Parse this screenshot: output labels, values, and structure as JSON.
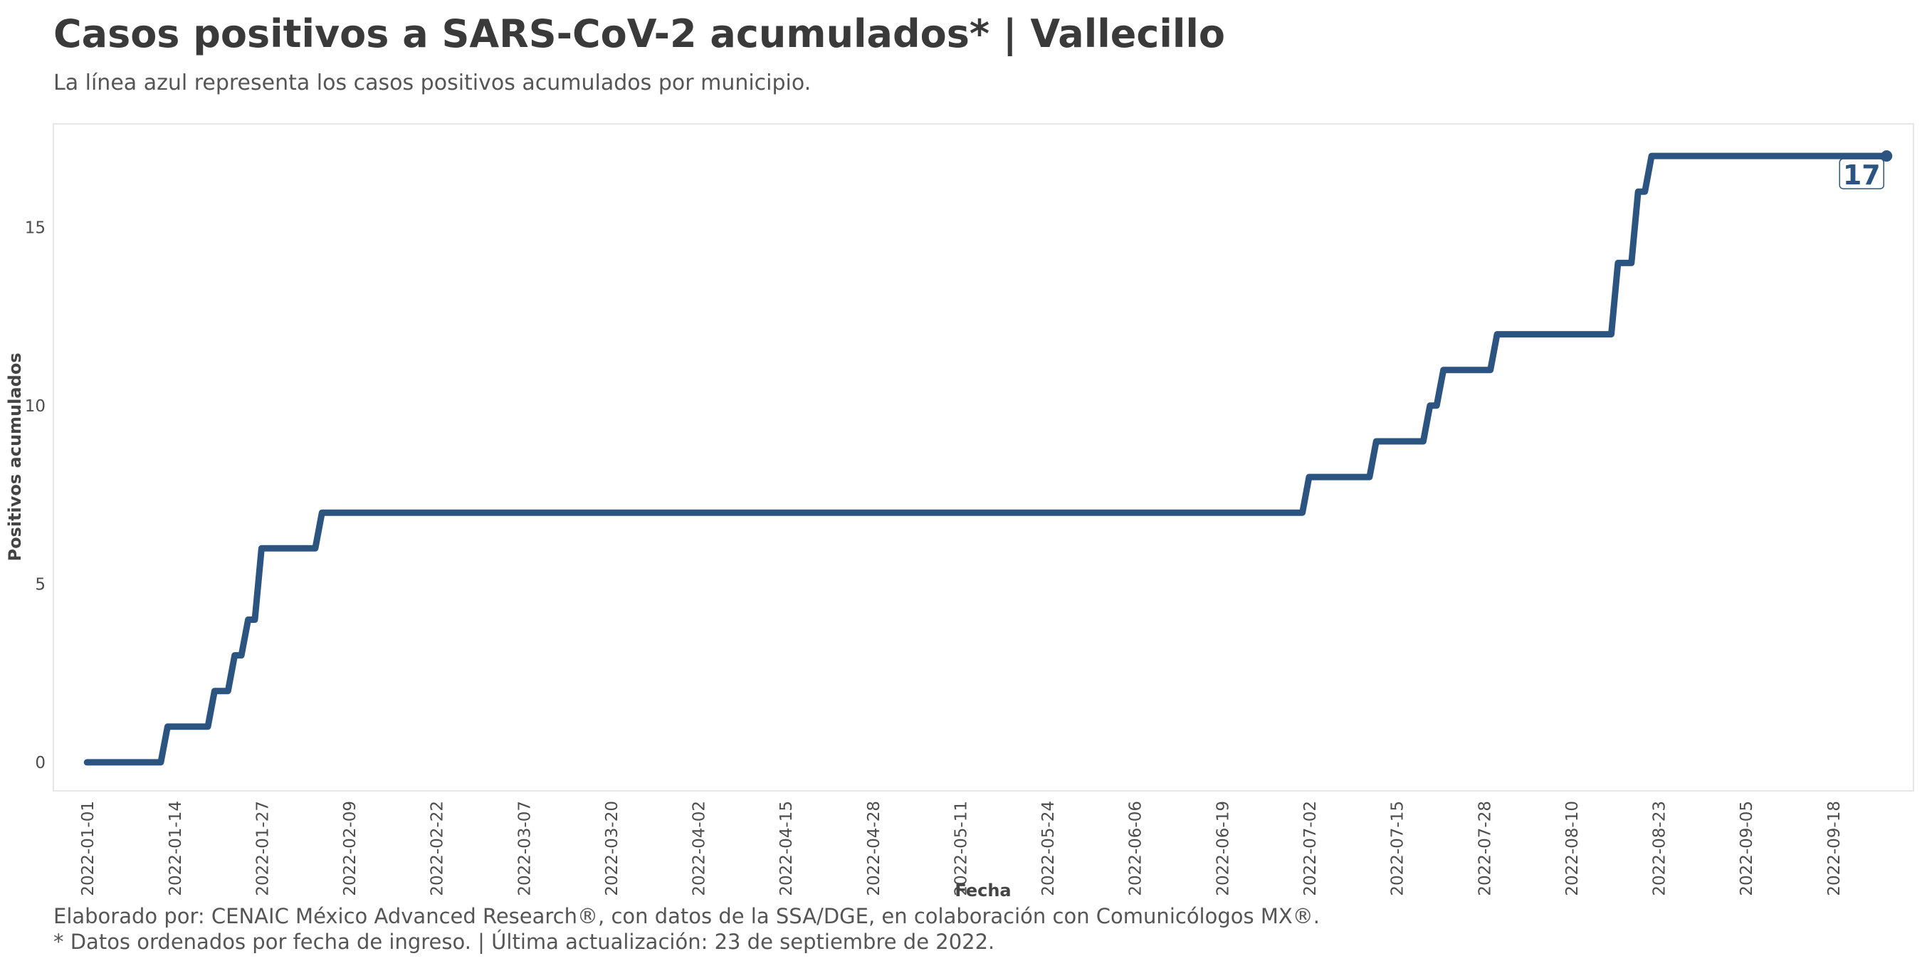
{
  "chart_data": {
    "type": "line",
    "title": "Casos positivos a SARS-CoV-2 acumulados* | Vallecillo",
    "subtitle": "La línea azul representa los casos positivos acumulados por municipio.",
    "xlabel": "Fecha",
    "ylabel": "Positivos acumulados",
    "caption_line1": "Elaborado por: CENAIC México Advanced Research®, con datos de la SSA/DGE, en colaboración con Comunicólogos MX®.",
    "caption_line2": "* Datos ordenados por fecha de ingreso. | Última actualización: 23 de septiembre de 2022.",
    "xlim": [
      "2021-12-27",
      "2022-09-30"
    ],
    "ylim": [
      -0.8,
      17.9
    ],
    "x_ticks": [
      "2022-01-01",
      "2022-01-14",
      "2022-01-27",
      "2022-02-09",
      "2022-02-22",
      "2022-03-07",
      "2022-03-20",
      "2022-04-02",
      "2022-04-15",
      "2022-04-28",
      "2022-05-11",
      "2022-05-24",
      "2022-06-06",
      "2022-06-19",
      "2022-07-02",
      "2022-07-15",
      "2022-07-28",
      "2022-08-10",
      "2022-08-23",
      "2022-09-05",
      "2022-09-18"
    ],
    "y_ticks": [
      0,
      5,
      10,
      15
    ],
    "grid": false,
    "end_label": "17",
    "line_color": "#2b5580",
    "series": [
      {
        "points": [
          {
            "x": "2022-01-01",
            "y": 0
          },
          {
            "x": "2022-01-12",
            "y": 0
          },
          {
            "x": "2022-01-13",
            "y": 1
          },
          {
            "x": "2022-01-19",
            "y": 1
          },
          {
            "x": "2022-01-20",
            "y": 2
          },
          {
            "x": "2022-01-22",
            "y": 2
          },
          {
            "x": "2022-01-23",
            "y": 3
          },
          {
            "x": "2022-01-24",
            "y": 3
          },
          {
            "x": "2022-01-25",
            "y": 4
          },
          {
            "x": "2022-01-26",
            "y": 4
          },
          {
            "x": "2022-01-27",
            "y": 6
          },
          {
            "x": "2022-02-04",
            "y": 6
          },
          {
            "x": "2022-02-05",
            "y": 7
          },
          {
            "x": "2022-07-01",
            "y": 7
          },
          {
            "x": "2022-07-02",
            "y": 8
          },
          {
            "x": "2022-07-11",
            "y": 8
          },
          {
            "x": "2022-07-12",
            "y": 9
          },
          {
            "x": "2022-07-19",
            "y": 9
          },
          {
            "x": "2022-07-20",
            "y": 10
          },
          {
            "x": "2022-07-21",
            "y": 10
          },
          {
            "x": "2022-07-22",
            "y": 11
          },
          {
            "x": "2022-07-29",
            "y": 11
          },
          {
            "x": "2022-07-30",
            "y": 12
          },
          {
            "x": "2022-08-16",
            "y": 12
          },
          {
            "x": "2022-08-17",
            "y": 14
          },
          {
            "x": "2022-08-19",
            "y": 14
          },
          {
            "x": "2022-08-20",
            "y": 16
          },
          {
            "x": "2022-08-21",
            "y": 16
          },
          {
            "x": "2022-08-22",
            "y": 17
          },
          {
            "x": "2022-09-26",
            "y": 17
          }
        ]
      }
    ]
  }
}
